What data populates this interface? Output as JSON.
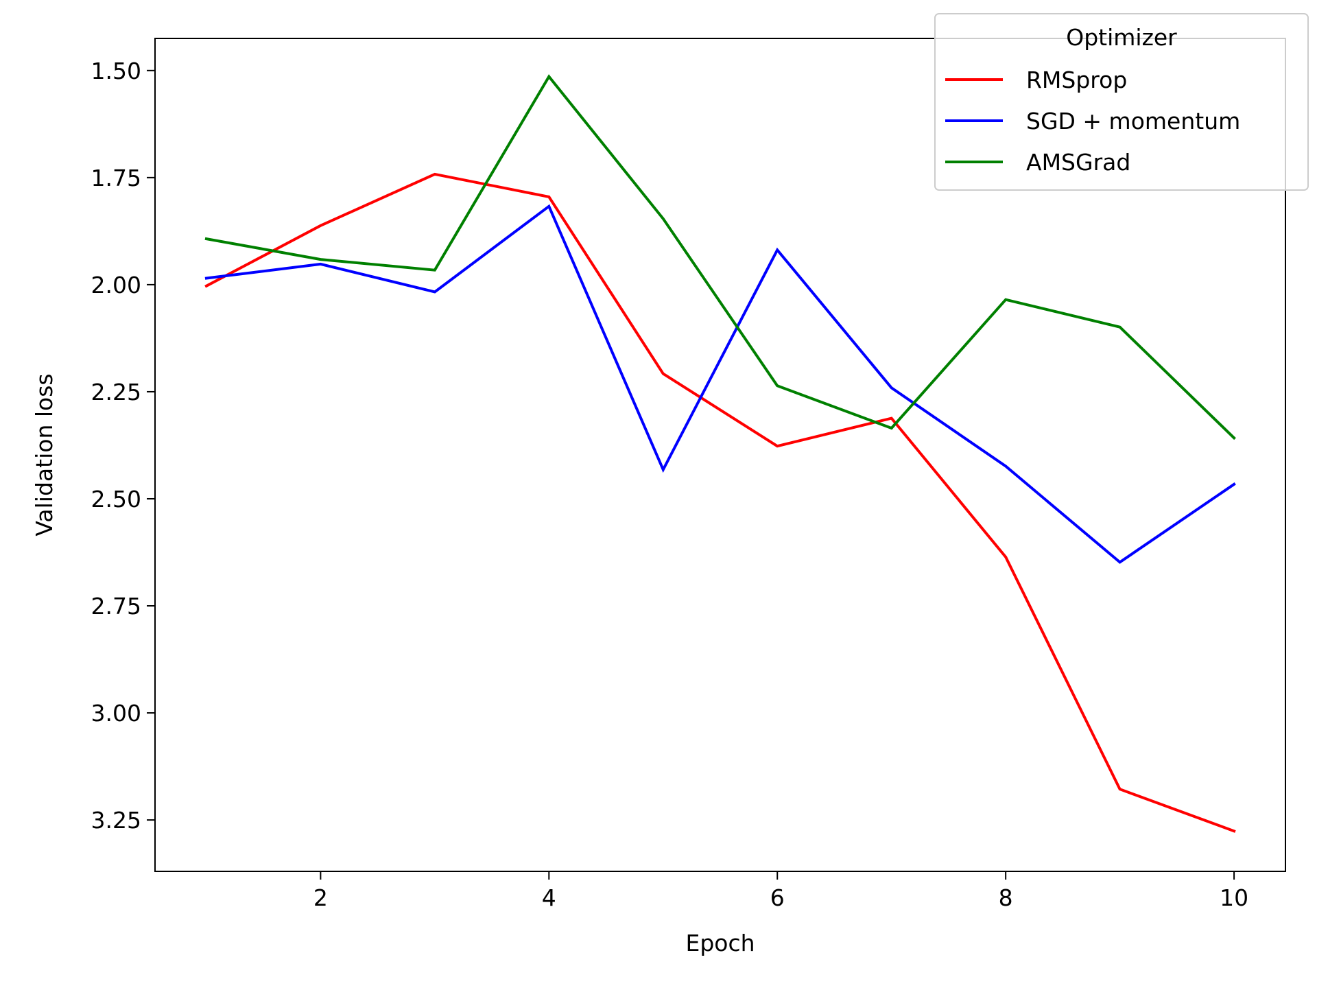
{
  "chart_data": {
    "type": "line",
    "xlabel": "Epoch",
    "ylabel": "Validation loss",
    "x": [
      1,
      2,
      3,
      4,
      5,
      6,
      7,
      8,
      9,
      10
    ],
    "xlim": [
      0.55,
      10.45
    ],
    "ylim": [
      3.37,
      1.425
    ],
    "y_inverted": true,
    "xticks": [
      2,
      4,
      6,
      8,
      10
    ],
    "yticks": [
      1.5,
      1.75,
      2.0,
      2.25,
      2.5,
      2.75,
      3.0,
      3.25
    ],
    "xtick_labels": [
      "2",
      "4",
      "6",
      "8",
      "10"
    ],
    "ytick_labels": [
      "1.50",
      "1.75",
      "2.00",
      "2.25",
      "2.50",
      "2.75",
      "3.00",
      "3.25"
    ],
    "grid": false,
    "legend": {
      "title": "Optimizer",
      "placement": "top-right"
    },
    "series": [
      {
        "name": "RMSprop",
        "color": "#ff0000",
        "values": [
          2.003,
          1.862,
          1.742,
          1.795,
          2.208,
          2.377,
          2.312,
          2.636,
          3.178,
          3.276
        ]
      },
      {
        "name": "SGD + momentum",
        "color": "#0000ff",
        "values": [
          1.985,
          1.952,
          2.017,
          1.817,
          2.432,
          1.919,
          2.241,
          2.424,
          2.648,
          2.466
        ]
      },
      {
        "name": "AMSGrad",
        "color": "#008000",
        "values": [
          1.893,
          1.941,
          1.966,
          1.514,
          1.846,
          2.236,
          2.335,
          2.035,
          2.099,
          2.358
        ]
      }
    ]
  }
}
